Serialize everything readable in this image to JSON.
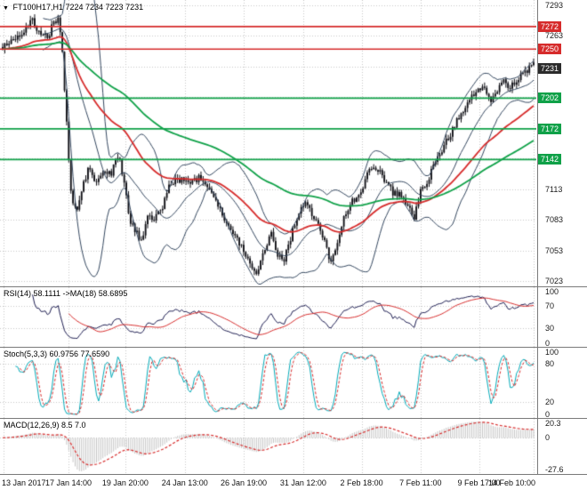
{
  "chart_data": {
    "type": "candlestick",
    "symbol": "FT100H17,H1",
    "ohlc_text": "7224 7234 7223 7231",
    "open": 7224,
    "high": 7234,
    "low": 7223,
    "close": 7231,
    "y_axis": {
      "min": 7018,
      "max": 7298,
      "grid_top": 7293,
      "grid_step": 30,
      "visible_ticks": [
        7293,
        7263,
        7113,
        7083,
        7053,
        7023
      ]
    },
    "levels": {
      "resistance": [
        7272,
        7250
      ],
      "support": [
        7202,
        7172,
        7142
      ],
      "current": 7231
    },
    "x_ticks": [
      {
        "t": 0.002,
        "label": "13 Jan 2017"
      },
      {
        "t": 0.124,
        "label": "17 Jan 14:00"
      },
      {
        "t": 0.231,
        "label": "19 Jan 20:00"
      },
      {
        "t": 0.343,
        "label": "24 Jan 13:00"
      },
      {
        "t": 0.454,
        "label": "26 Jan 19:00"
      },
      {
        "t": 0.566,
        "label": "31 Jan 12:00"
      },
      {
        "t": 0.676,
        "label": "2 Feb 18:00"
      },
      {
        "t": 0.787,
        "label": "7 Feb 11:00"
      },
      {
        "t": 0.897,
        "label": "9 Feb 17:00"
      },
      {
        "t": 1.0,
        "label": "14 Feb 10:00"
      }
    ],
    "candle_count": 250,
    "price_path": [
      [
        0,
        7252
      ],
      [
        0.02,
        7260
      ],
      [
        0.04,
        7268
      ],
      [
        0.055,
        7278
      ],
      [
        0.07,
        7266
      ],
      [
        0.085,
        7260
      ],
      [
        0.095,
        7275
      ],
      [
        0.105,
        7282
      ],
      [
        0.112,
        7250
      ],
      [
        0.12,
        7180
      ],
      [
        0.13,
        7100
      ],
      [
        0.14,
        7092
      ],
      [
        0.152,
        7118
      ],
      [
        0.163,
        7135
      ],
      [
        0.175,
        7118
      ],
      [
        0.19,
        7130
      ],
      [
        0.205,
        7128
      ],
      [
        0.218,
        7148
      ],
      [
        0.228,
        7120
      ],
      [
        0.24,
        7082
      ],
      [
        0.252,
        7070
      ],
      [
        0.262,
        7062
      ],
      [
        0.272,
        7090
      ],
      [
        0.285,
        7082
      ],
      [
        0.3,
        7095
      ],
      [
        0.315,
        7118
      ],
      [
        0.33,
        7123
      ],
      [
        0.345,
        7120
      ],
      [
        0.36,
        7122
      ],
      [
        0.375,
        7125
      ],
      [
        0.39,
        7114
      ],
      [
        0.405,
        7100
      ],
      [
        0.42,
        7080
      ],
      [
        0.435,
        7068
      ],
      [
        0.45,
        7058
      ],
      [
        0.465,
        7040
      ],
      [
        0.48,
        7032
      ],
      [
        0.492,
        7052
      ],
      [
        0.505,
        7072
      ],
      [
        0.518,
        7048
      ],
      [
        0.53,
        7045
      ],
      [
        0.545,
        7070
      ],
      [
        0.558,
        7092
      ],
      [
        0.57,
        7100
      ],
      [
        0.582,
        7088
      ],
      [
        0.595,
        7078
      ],
      [
        0.608,
        7058
      ],
      [
        0.618,
        7042
      ],
      [
        0.63,
        7062
      ],
      [
        0.645,
        7088
      ],
      [
        0.66,
        7102
      ],
      [
        0.675,
        7112
      ],
      [
        0.69,
        7130
      ],
      [
        0.705,
        7135
      ],
      [
        0.72,
        7122
      ],
      [
        0.735,
        7110
      ],
      [
        0.75,
        7108
      ],
      [
        0.765,
        7095
      ],
      [
        0.775,
        7085
      ],
      [
        0.788,
        7112
      ],
      [
        0.8,
        7122
      ],
      [
        0.815,
        7138
      ],
      [
        0.83,
        7155
      ],
      [
        0.845,
        7168
      ],
      [
        0.86,
        7185
      ],
      [
        0.875,
        7198
      ],
      [
        0.89,
        7208
      ],
      [
        0.905,
        7212
      ],
      [
        0.918,
        7198
      ],
      [
        0.93,
        7208
      ],
      [
        0.942,
        7220
      ],
      [
        0.955,
        7212
      ],
      [
        0.968,
        7220
      ],
      [
        0.98,
        7226
      ],
      [
        0.99,
        7230
      ],
      [
        1,
        7234
      ]
    ],
    "overlays": {
      "bollinger_period": 20,
      "bollinger_dev": 2,
      "ma_red_period": 50,
      "ma_green_period": 115
    },
    "panels": {
      "rsi": {
        "label": "RSI(14) 58.1111 ->MA(18) 58.6895",
        "period": 14,
        "ma_period": 18,
        "value": 58.1111,
        "ma_value": 58.6895,
        "ticks": [
          100,
          70,
          30,
          0
        ],
        "levels": [
          70,
          30
        ]
      },
      "stoch": {
        "label": "Stoch(5,3,3) 60.9756 77.6590",
        "k": 60.9756,
        "d": 77.659,
        "ticks": [
          100,
          80,
          20,
          0
        ],
        "levels": [
          80,
          20
        ]
      },
      "macd": {
        "label": "MACD(12,26,9) 8.5 7.0",
        "value": 8.5,
        "signal": 7.0,
        "tick_top": 20.3,
        "tick_zero": 0,
        "tick_bottom": -27.6
      }
    },
    "colors": {
      "grid": "#c6c6c6",
      "candle": "#0e0e14",
      "bollinger": "#33465e",
      "ma_red": "#d62b2b",
      "ma_green": "#0fa148",
      "resistance": "#d62b2b",
      "support": "#0fa148",
      "current_bg": "#2b2b2b",
      "rsi_line": "#1c1c50",
      "rsi_ma": "#d62b2b",
      "stoch_k": "#00a9b7",
      "stoch_d": "#d62b2b",
      "macd_hist": "#c4c4c4",
      "macd_signal": "#d62b2b"
    }
  }
}
